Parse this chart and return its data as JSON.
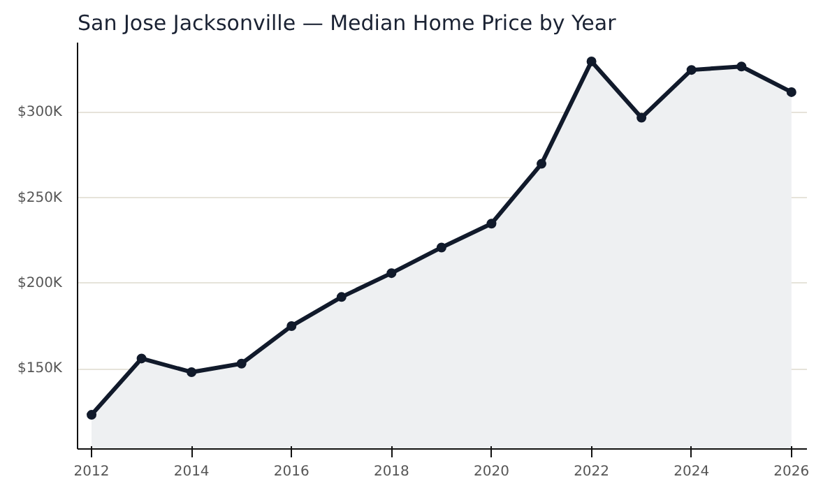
{
  "chart_data": {
    "type": "area",
    "title": "San Jose Jacksonville — Median Home Price by Year",
    "x": [
      2012,
      2013,
      2014,
      2015,
      2016,
      2017,
      2018,
      2019,
      2020,
      2021,
      2022,
      2023,
      2024,
      2025,
      2026
    ],
    "series": [
      {
        "color": "#111a2b",
        "values": [
          123000,
          156000,
          148000,
          153000,
          175000,
          192000,
          206000,
          221000,
          235000,
          270000,
          330000,
          297000,
          325000,
          327000,
          312000
        ]
      }
    ],
    "xlim": [
      2011.72,
      2026.31
    ],
    "xticks": [
      2012,
      2014,
      2016,
      2018,
      2020,
      2022,
      2024,
      2026
    ],
    "ylim": [
      103000,
      341000
    ],
    "yticks": [
      {
        "value": 150000,
        "label": "$150K"
      },
      {
        "value": 200000,
        "label": "$200K"
      },
      {
        "value": 250000,
        "label": "$250K"
      },
      {
        "value": 300000,
        "label": "$300K"
      }
    ],
    "grid": "y",
    "marker": "circle",
    "line_style": "solid"
  }
}
